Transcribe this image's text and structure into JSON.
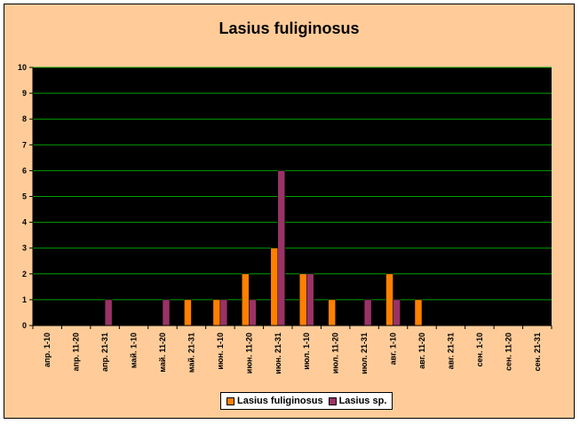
{
  "chart_data": {
    "type": "bar",
    "title": "Lasius fuliginosus",
    "categories": [
      "апр. 1-10",
      "апр. 11-20",
      "апр. 21-31",
      "май. 1-10",
      "май. 11-20",
      "май. 21-31",
      "июн. 1-10",
      "июн. 11-20",
      "июн. 21-31",
      "июл. 1-10",
      "июл. 11-20",
      "июл. 21-31",
      "авг. 1-10",
      "авг. 11-20",
      "авг. 21-31",
      "сен. 1-10",
      "сен. 11-20",
      "сен. 21-31"
    ],
    "series": [
      {
        "name": "Lasius fuliginosus",
        "color": "#ff8000",
        "values": [
          0,
          0,
          0,
          0,
          0,
          1,
          1,
          2,
          3,
          2,
          1,
          0,
          2,
          1,
          0,
          0,
          0,
          0
        ]
      },
      {
        "name": "Lasius sp.",
        "color": "#993366",
        "values": [
          0,
          0,
          1,
          0,
          1,
          0,
          1,
          1,
          6,
          2,
          0,
          1,
          1,
          0,
          0,
          0,
          0,
          0
        ]
      }
    ],
    "ylim": [
      0,
      10
    ],
    "yticks": [
      "0",
      "1",
      "2",
      "3",
      "4",
      "5",
      "6",
      "7",
      "8",
      "9",
      "10"
    ],
    "grid": true,
    "gridline_color": "#00a000",
    "plot_background": "#000000",
    "chart_background": "#ffcc99",
    "legend_position": "bottom"
  }
}
